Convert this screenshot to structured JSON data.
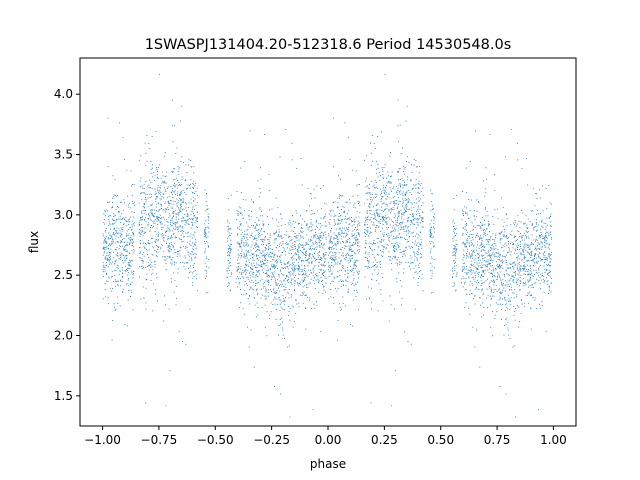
{
  "chart_data": {
    "type": "scatter",
    "title": "1SWASPJ131404.20-512318.6 Period 14530548.0s",
    "xlabel": "phase",
    "ylabel": "flux",
    "xlim": [
      -1.1,
      1.1
    ],
    "ylim": [
      1.25,
      4.3
    ],
    "xticks": [
      -1.0,
      -0.75,
      -0.5,
      -0.25,
      0.0,
      0.25,
      0.5,
      0.75,
      1.0
    ],
    "xtick_labels": [
      "−1.00",
      "−0.75",
      "−0.50",
      "−0.25",
      "0.00",
      "0.25",
      "0.50",
      "0.75",
      "1.00"
    ],
    "yticks": [
      1.5,
      2.0,
      2.5,
      3.0,
      3.5,
      4.0
    ],
    "ytick_labels": [
      "1.5",
      "2.0",
      "2.5",
      "3.0",
      "3.5",
      "4.0"
    ],
    "grid": false,
    "marker_color": "#1f77b4",
    "profile": {
      "phase": [
        0.0,
        0.05,
        0.1,
        0.15,
        0.2,
        0.25,
        0.3,
        0.35,
        0.4,
        0.45,
        0.5,
        0.55,
        0.6,
        0.65,
        0.7,
        0.75,
        0.8,
        0.85,
        0.9,
        0.95,
        1.0
      ],
      "median_flux": [
        2.7,
        2.75,
        2.7,
        2.85,
        2.95,
        2.95,
        2.9,
        3.0,
        2.9,
        2.85,
        2.8,
        2.7,
        2.7,
        2.65,
        2.65,
        2.6,
        2.55,
        2.6,
        2.65,
        2.7,
        2.7
      ],
      "spread": [
        0.2,
        0.22,
        0.22,
        0.22,
        0.25,
        0.25,
        0.25,
        0.25,
        0.22,
        0.2,
        0.2,
        0.2,
        0.2,
        0.2,
        0.22,
        0.2,
        0.22,
        0.22,
        0.2,
        0.2,
        0.2
      ]
    },
    "observed_phase_bands": [
      [
        0.0,
        0.14
      ],
      [
        0.16,
        0.42
      ],
      [
        0.45,
        0.47
      ],
      [
        0.55,
        0.57
      ],
      [
        0.59,
        0.99
      ]
    ]
  }
}
